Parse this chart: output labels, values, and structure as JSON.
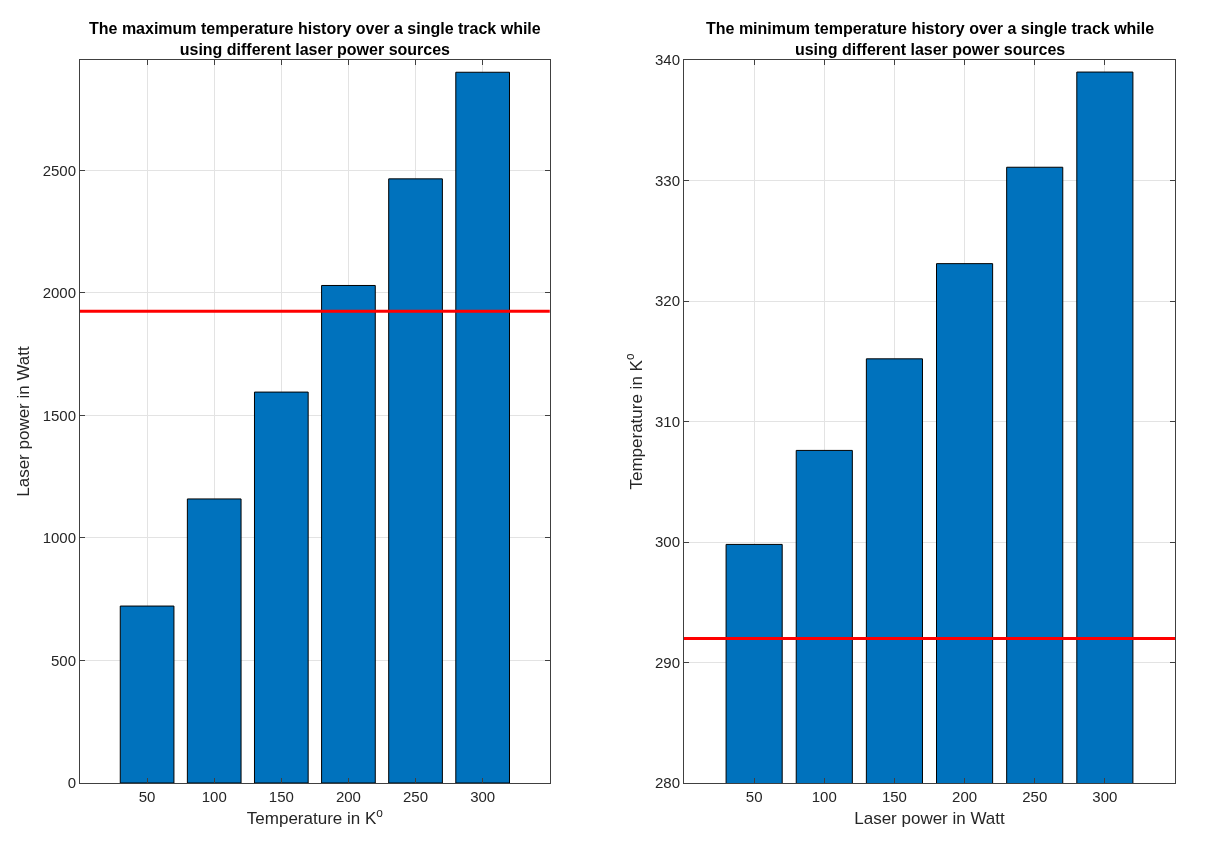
{
  "chart_data": [
    {
      "type": "bar",
      "title": "The maximum temperature history over a single track while using different laser power sources",
      "xlabel": "Temperature in K$^{o}$",
      "ylabel": "Laser power in Watt",
      "categories": [
        "50",
        "100",
        "150",
        "200",
        "250",
        "300"
      ],
      "values": [
        722,
        1159,
        1595,
        2030,
        2465,
        2900
      ],
      "color": "#0072bd",
      "ylim": [
        0,
        2950
      ],
      "yticks": [
        0,
        500,
        1000,
        1500,
        2000,
        2500
      ],
      "grid": true,
      "ref_lines": [
        {
          "axis": "y",
          "value": 1925,
          "color": "#ff0000"
        }
      ]
    },
    {
      "type": "bar",
      "title": "The minimum temperature history over a single track while using different laser power sources",
      "xlabel": "Laser power in Watt",
      "ylabel": "Temperature in K$^{o}$",
      "categories": [
        "50",
        "100",
        "150",
        "200",
        "250",
        "300"
      ],
      "values": [
        299.8,
        307.6,
        315.2,
        323.1,
        331.1,
        339.0
      ],
      "color": "#0072bd",
      "ylim": [
        280,
        340
      ],
      "yticks": [
        280,
        290,
        300,
        310,
        320,
        330,
        340
      ],
      "grid": true,
      "ref_lines": [
        {
          "axis": "y",
          "value": 292,
          "color": "#ff0000"
        }
      ]
    }
  ]
}
